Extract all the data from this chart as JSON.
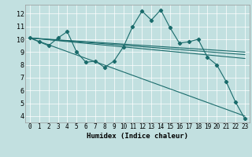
{
  "title": "",
  "xlabel": "Humidex (Indice chaleur)",
  "bg_color": "#c2e0e0",
  "line_color": "#1a6b6b",
  "xlim": [
    -0.5,
    23.5
  ],
  "ylim": [
    3.5,
    12.7
  ],
  "xticks": [
    0,
    1,
    2,
    3,
    4,
    5,
    6,
    7,
    8,
    9,
    10,
    11,
    12,
    13,
    14,
    15,
    16,
    17,
    18,
    19,
    20,
    21,
    22,
    23
  ],
  "yticks": [
    4,
    5,
    6,
    7,
    8,
    9,
    10,
    11,
    12
  ],
  "line1_x": [
    0,
    1,
    2,
    3,
    4,
    5,
    6,
    7,
    8,
    9,
    10,
    11,
    12,
    13,
    14,
    15,
    16,
    17,
    18,
    19,
    20,
    21,
    22,
    23
  ],
  "line1_y": [
    10.1,
    9.8,
    9.5,
    10.1,
    10.6,
    9.0,
    8.2,
    8.3,
    7.8,
    8.3,
    9.4,
    11.0,
    12.2,
    11.5,
    12.3,
    10.9,
    9.7,
    9.8,
    10.0,
    8.6,
    8.0,
    6.7,
    5.1,
    3.8
  ],
  "line2_x": [
    0,
    23
  ],
  "line2_y": [
    10.1,
    9.0
  ],
  "line3_x": [
    0,
    23
  ],
  "line3_y": [
    10.1,
    8.8
  ],
  "line4_x": [
    0,
    23
  ],
  "line4_y": [
    10.1,
    8.5
  ],
  "line5_x": [
    0,
    23
  ],
  "line5_y": [
    10.1,
    4.0
  ],
  "grid_color": "#e8e8e8",
  "grid_major_color": "#ffffff",
  "marker": "D",
  "markersize": 2.2,
  "linewidth": 0.8,
  "xlabel_fontsize": 6.5,
  "tick_fontsize": 5.5
}
